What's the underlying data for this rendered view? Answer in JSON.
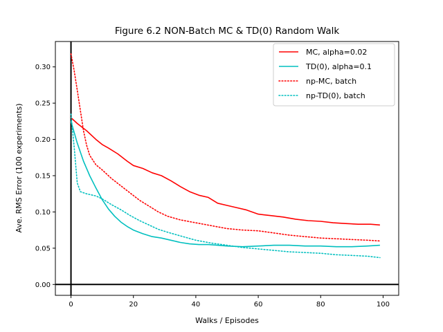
{
  "chart_data": {
    "type": "line",
    "title": "Figure 6.2 NON-Batch MC & TD(0) Random Walk",
    "xlabel": "Walks / Episodes",
    "ylabel": "Ave. RMS Error (100 experiments)",
    "xlim": [
      -5,
      105
    ],
    "ylim": [
      -0.015,
      0.335
    ],
    "xticks": [
      0,
      20,
      40,
      60,
      80,
      100
    ],
    "xtick_labels": [
      "0",
      "20",
      "40",
      "60",
      "80",
      "100"
    ],
    "yticks": [
      0.0,
      0.05,
      0.1,
      0.15,
      0.2,
      0.25,
      0.3
    ],
    "ytick_labels": [
      "0.00",
      "0.05",
      "0.10",
      "0.15",
      "0.20",
      "0.25",
      "0.30"
    ],
    "reference_lines": {
      "x": 0,
      "y": 0
    },
    "grid": false,
    "legend_position": "top-right",
    "series": [
      {
        "name": "MC, alpha=0.02",
        "color": "#ff0000",
        "style": "solid",
        "x": [
          0,
          2,
          5,
          8,
          10,
          12,
          15,
          18,
          20,
          23,
          26,
          29,
          32,
          35,
          38,
          41,
          44,
          47,
          50,
          53,
          56,
          60,
          64,
          68,
          72,
          76,
          80,
          84,
          88,
          92,
          96,
          99
        ],
        "y": [
          0.23,
          0.222,
          0.212,
          0.2,
          0.193,
          0.188,
          0.18,
          0.17,
          0.164,
          0.16,
          0.154,
          0.15,
          0.143,
          0.135,
          0.128,
          0.123,
          0.12,
          0.112,
          0.109,
          0.106,
          0.103,
          0.097,
          0.095,
          0.093,
          0.09,
          0.088,
          0.087,
          0.085,
          0.084,
          0.083,
          0.083,
          0.082
        ]
      },
      {
        "name": "TD(0), alpha=0.1",
        "color": "#00bfbf",
        "style": "solid",
        "x": [
          0,
          2,
          4,
          6,
          8,
          10,
          12,
          14,
          16,
          18,
          20,
          23,
          26,
          29,
          32,
          35,
          38,
          41,
          44,
          47,
          50,
          55,
          60,
          65,
          70,
          75,
          80,
          85,
          90,
          95,
          99
        ],
        "y": [
          0.225,
          0.195,
          0.17,
          0.15,
          0.133,
          0.117,
          0.104,
          0.094,
          0.086,
          0.08,
          0.075,
          0.07,
          0.066,
          0.064,
          0.061,
          0.058,
          0.056,
          0.055,
          0.055,
          0.054,
          0.053,
          0.052,
          0.053,
          0.054,
          0.054,
          0.053,
          0.053,
          0.052,
          0.052,
          0.053,
          0.054
        ]
      },
      {
        "name": "np-MC, batch",
        "color": "#ff0000",
        "style": "dotted",
        "x": [
          0,
          1,
          2,
          3,
          4,
          5,
          6,
          8,
          10,
          13,
          16,
          19,
          22,
          25,
          28,
          31,
          35,
          40,
          45,
          50,
          55,
          60,
          65,
          70,
          75,
          80,
          85,
          90,
          95,
          99
        ],
        "y": [
          0.318,
          0.295,
          0.268,
          0.24,
          0.212,
          0.192,
          0.178,
          0.165,
          0.158,
          0.146,
          0.136,
          0.126,
          0.116,
          0.108,
          0.1,
          0.094,
          0.089,
          0.085,
          0.081,
          0.077,
          0.075,
          0.074,
          0.071,
          0.068,
          0.066,
          0.064,
          0.063,
          0.062,
          0.061,
          0.06
        ]
      },
      {
        "name": "np-TD(0), batch",
        "color": "#00bfbf",
        "style": "dotted",
        "x": [
          0,
          1,
          2,
          3,
          5,
          8,
          10,
          13,
          16,
          19,
          22,
          25,
          28,
          31,
          35,
          40,
          45,
          50,
          55,
          60,
          65,
          70,
          75,
          80,
          85,
          90,
          95,
          99
        ],
        "y": [
          0.235,
          0.19,
          0.14,
          0.128,
          0.125,
          0.122,
          0.118,
          0.11,
          0.103,
          0.095,
          0.088,
          0.082,
          0.076,
          0.072,
          0.067,
          0.061,
          0.057,
          0.054,
          0.051,
          0.049,
          0.047,
          0.045,
          0.044,
          0.043,
          0.041,
          0.04,
          0.039,
          0.037
        ]
      }
    ]
  }
}
